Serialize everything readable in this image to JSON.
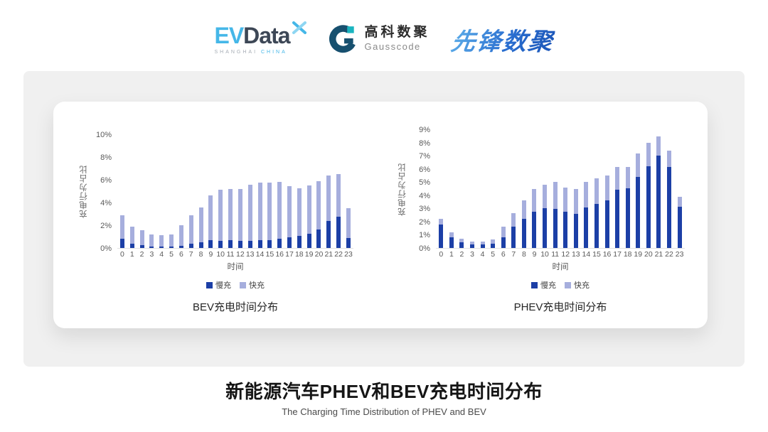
{
  "header": {
    "evdata": {
      "ev": "EV",
      "data": "Data",
      "sub1": "SHANGHAI",
      "sub2": "CHINA"
    },
    "gausscode": {
      "cn": "高科数聚",
      "en": "Gausscode"
    },
    "xianfeng": {
      "text": "先锋数聚"
    }
  },
  "colors": {
    "slow_charge": "#1c3fa6",
    "fast_charge": "#a6aedd",
    "panel_bg": "#f0f0f0",
    "evdata_blue": "#45b7e8",
    "evdata_dark": "#3d4756",
    "gausscode_navy": "#17506f",
    "gausscode_teal": "#1ab5c0",
    "xianfeng_blue": "#2a6fd0"
  },
  "chart_data": [
    {
      "type": "bar",
      "stacked": true,
      "title": "BEV充电时间分布",
      "xlabel": "时间",
      "ylabel": "充电行为占比",
      "ylim": [
        0,
        10
      ],
      "yticks": [
        "0%",
        "2%",
        "4%",
        "6%",
        "8%",
        "10%"
      ],
      "grid": false,
      "legend_position": "bottom",
      "categories": [
        "0",
        "1",
        "2",
        "3",
        "4",
        "5",
        "6",
        "7",
        "8",
        "9",
        "10",
        "11",
        "12",
        "13",
        "14",
        "15",
        "16",
        "17",
        "18",
        "19",
        "20",
        "21",
        "22",
        "23"
      ],
      "series": [
        {
          "name": "慢充",
          "color": "#1c3fa6",
          "values": [
            0.8,
            0.35,
            0.25,
            0.15,
            0.15,
            0.15,
            0.2,
            0.35,
            0.5,
            0.7,
            0.65,
            0.7,
            0.6,
            0.65,
            0.7,
            0.7,
            0.8,
            0.95,
            1.05,
            1.25,
            1.6,
            2.4,
            2.75,
            0.9
          ]
        },
        {
          "name": "快充",
          "color": "#a6aedd",
          "values": [
            2.1,
            1.55,
            1.3,
            1.05,
            0.95,
            1.05,
            1.8,
            2.5,
            3.05,
            3.9,
            4.5,
            4.5,
            4.6,
            4.9,
            5.05,
            5.05,
            5.0,
            4.5,
            4.2,
            4.25,
            4.25,
            3.95,
            3.75,
            2.6
          ]
        }
      ]
    },
    {
      "type": "bar",
      "stacked": true,
      "title": "PHEV充电时间分布",
      "xlabel": "时间",
      "ylabel": "充电行为占比",
      "ylim": [
        0,
        9
      ],
      "yticks": [
        "0%",
        "1%",
        "2%",
        "3%",
        "4%",
        "5%",
        "6%",
        "7%",
        "8%",
        "9%"
      ],
      "grid": false,
      "legend_position": "bottom",
      "categories": [
        "0",
        "1",
        "2",
        "3",
        "4",
        "5",
        "6",
        "7",
        "8",
        "9",
        "10",
        "11",
        "12",
        "13",
        "14",
        "15",
        "16",
        "17",
        "18",
        "19",
        "20",
        "21",
        "22",
        "23"
      ],
      "series": [
        {
          "name": "慢充",
          "color": "#1c3fa6",
          "values": [
            1.8,
            0.8,
            0.45,
            0.25,
            0.25,
            0.3,
            0.8,
            1.6,
            2.2,
            2.75,
            3.0,
            2.95,
            2.75,
            2.6,
            3.05,
            3.35,
            3.6,
            4.4,
            4.55,
            5.4,
            6.2,
            7.0,
            6.15,
            3.1
          ]
        },
        {
          "name": "快充",
          "color": "#a6aedd",
          "values": [
            0.4,
            0.4,
            0.25,
            0.25,
            0.25,
            0.35,
            0.8,
            1.05,
            1.4,
            1.75,
            1.8,
            2.05,
            1.85,
            1.85,
            1.95,
            1.95,
            1.9,
            1.75,
            1.6,
            1.75,
            1.8,
            1.45,
            1.25,
            0.8
          ]
        }
      ]
    }
  ],
  "footer": {
    "title": "新能源汽车PHEV和BEV充电时间分布",
    "subtitle": "The Charging Time Distribution of PHEV and BEV"
  }
}
